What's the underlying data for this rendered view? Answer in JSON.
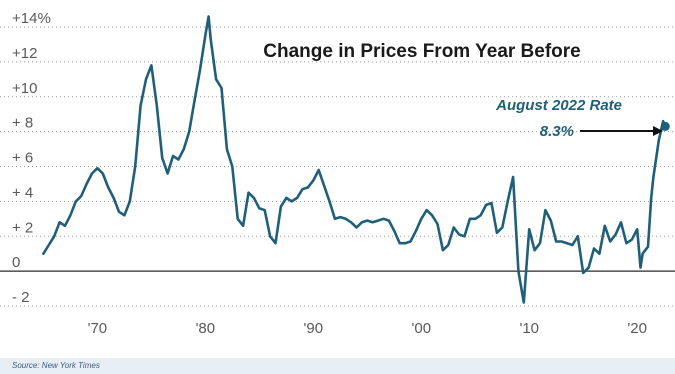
{
  "chart_data": {
    "type": "line",
    "title": "Change in Prices From Year Before",
    "xlabel": "",
    "ylabel": "",
    "xlim": [
      1964.5,
      2023.5
    ],
    "ylim": [
      -3,
      15.5
    ],
    "grid": "horizontal-dotted",
    "y_ticks": [
      {
        "value": 14,
        "label": "+14%"
      },
      {
        "value": 12,
        "label": "+12"
      },
      {
        "value": 10,
        "label": "+10"
      },
      {
        "value": 8,
        "label": "+ 8"
      },
      {
        "value": 6,
        "label": "+ 6"
      },
      {
        "value": 4,
        "label": "+ 4"
      },
      {
        "value": 2,
        "label": "+ 2"
      },
      {
        "value": 0,
        "label": "0"
      },
      {
        "value": -2,
        "label": "- 2"
      }
    ],
    "x_ticks": [
      {
        "value": 1970,
        "label": "'70"
      },
      {
        "value": 1980,
        "label": "'80"
      },
      {
        "value": 1990,
        "label": "'90"
      },
      {
        "value": 2000,
        "label": "'00"
      },
      {
        "value": 2010,
        "label": "'10"
      },
      {
        "value": 2020,
        "label": "'20"
      }
    ],
    "series": [
      {
        "color": "#1f5f7a",
        "points": [
          [
            1965.0,
            1.0
          ],
          [
            1965.5,
            1.5
          ],
          [
            1966.0,
            2.0
          ],
          [
            1966.5,
            2.8
          ],
          [
            1967.0,
            2.6
          ],
          [
            1967.5,
            3.2
          ],
          [
            1968.0,
            4.0
          ],
          [
            1968.5,
            4.3
          ],
          [
            1969.0,
            5.0
          ],
          [
            1969.5,
            5.6
          ],
          [
            1970.0,
            5.9
          ],
          [
            1970.5,
            5.6
          ],
          [
            1971.0,
            4.8
          ],
          [
            1971.5,
            4.2
          ],
          [
            1972.0,
            3.4
          ],
          [
            1972.5,
            3.2
          ],
          [
            1973.0,
            4.0
          ],
          [
            1973.5,
            6.0
          ],
          [
            1974.0,
            9.5
          ],
          [
            1974.5,
            11.0
          ],
          [
            1975.0,
            11.8
          ],
          [
            1975.5,
            9.5
          ],
          [
            1976.0,
            6.5
          ],
          [
            1976.5,
            5.6
          ],
          [
            1977.0,
            6.6
          ],
          [
            1977.5,
            6.4
          ],
          [
            1978.0,
            7.0
          ],
          [
            1978.5,
            8.0
          ],
          [
            1979.0,
            9.8
          ],
          [
            1979.5,
            11.5
          ],
          [
            1980.0,
            13.5
          ],
          [
            1980.3,
            14.6
          ],
          [
            1980.5,
            13.3
          ],
          [
            1981.0,
            11.0
          ],
          [
            1981.5,
            10.5
          ],
          [
            1982.0,
            7.0
          ],
          [
            1982.5,
            6.0
          ],
          [
            1983.0,
            3.0
          ],
          [
            1983.5,
            2.6
          ],
          [
            1984.0,
            4.5
          ],
          [
            1984.5,
            4.2
          ],
          [
            1985.0,
            3.6
          ],
          [
            1985.5,
            3.5
          ],
          [
            1986.0,
            2.0
          ],
          [
            1986.5,
            1.6
          ],
          [
            1987.0,
            3.7
          ],
          [
            1987.5,
            4.2
          ],
          [
            1988.0,
            4.0
          ],
          [
            1988.5,
            4.2
          ],
          [
            1989.0,
            4.7
          ],
          [
            1989.5,
            4.8
          ],
          [
            1990.0,
            5.2
          ],
          [
            1990.5,
            5.8
          ],
          [
            1991.0,
            4.9
          ],
          [
            1991.5,
            4.0
          ],
          [
            1992.0,
            3.0
          ],
          [
            1992.5,
            3.1
          ],
          [
            1993.0,
            3.0
          ],
          [
            1993.5,
            2.8
          ],
          [
            1994.0,
            2.5
          ],
          [
            1994.5,
            2.8
          ],
          [
            1995.0,
            2.9
          ],
          [
            1995.5,
            2.8
          ],
          [
            1996.0,
            2.9
          ],
          [
            1996.5,
            3.0
          ],
          [
            1997.0,
            2.9
          ],
          [
            1997.5,
            2.3
          ],
          [
            1998.0,
            1.6
          ],
          [
            1998.5,
            1.6
          ],
          [
            1999.0,
            1.7
          ],
          [
            1999.5,
            2.3
          ],
          [
            2000.0,
            3.0
          ],
          [
            2000.5,
            3.5
          ],
          [
            2001.0,
            3.2
          ],
          [
            2001.5,
            2.7
          ],
          [
            2002.0,
            1.2
          ],
          [
            2002.5,
            1.5
          ],
          [
            2003.0,
            2.5
          ],
          [
            2003.5,
            2.1
          ],
          [
            2004.0,
            2.0
          ],
          [
            2004.5,
            3.0
          ],
          [
            2005.0,
            3.0
          ],
          [
            2005.5,
            3.2
          ],
          [
            2006.0,
            3.8
          ],
          [
            2006.5,
            3.9
          ],
          [
            2007.0,
            2.2
          ],
          [
            2007.5,
            2.5
          ],
          [
            2008.0,
            4.0
          ],
          [
            2008.5,
            5.4
          ],
          [
            2009.0,
            0.0
          ],
          [
            2009.5,
            -1.8
          ],
          [
            2010.0,
            2.4
          ],
          [
            2010.5,
            1.2
          ],
          [
            2011.0,
            1.6
          ],
          [
            2011.5,
            3.5
          ],
          [
            2012.0,
            2.9
          ],
          [
            2012.5,
            1.7
          ],
          [
            2013.0,
            1.7
          ],
          [
            2013.5,
            1.6
          ],
          [
            2014.0,
            1.5
          ],
          [
            2014.5,
            2.0
          ],
          [
            2015.0,
            -0.1
          ],
          [
            2015.5,
            0.2
          ],
          [
            2016.0,
            1.3
          ],
          [
            2016.5,
            1.0
          ],
          [
            2017.0,
            2.6
          ],
          [
            2017.5,
            1.7
          ],
          [
            2018.0,
            2.1
          ],
          [
            2018.5,
            2.8
          ],
          [
            2019.0,
            1.6
          ],
          [
            2019.5,
            1.8
          ],
          [
            2020.0,
            2.4
          ],
          [
            2020.3,
            0.2
          ],
          [
            2020.5,
            1.0
          ],
          [
            2021.0,
            1.4
          ],
          [
            2021.3,
            4.2
          ],
          [
            2021.5,
            5.4
          ],
          [
            2022.0,
            7.5
          ],
          [
            2022.4,
            8.6
          ],
          [
            2022.6,
            8.3
          ]
        ]
      }
    ],
    "end_point": {
      "x": 2022.6,
      "y": 8.3
    },
    "annotation": {
      "line1": "August 2022 Rate",
      "line2": "8.3%",
      "color": "#1f5f7a"
    },
    "source": "Source: New York Times"
  }
}
